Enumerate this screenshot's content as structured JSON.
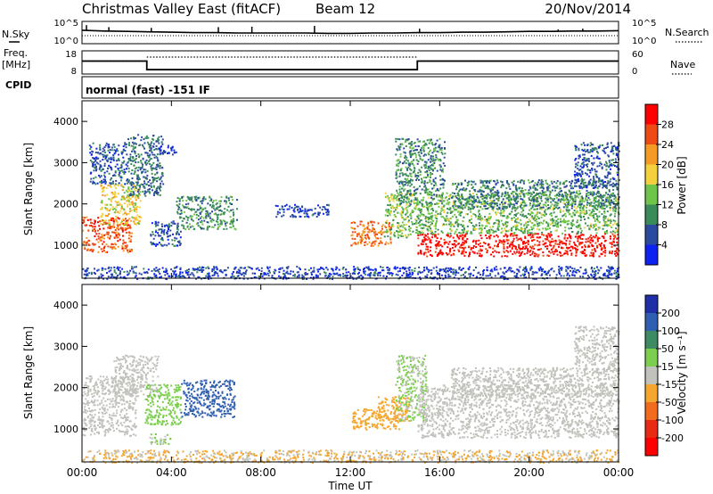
{
  "header": {
    "title": "Christmas Valley East (fitACF)",
    "beam": "Beam 12",
    "date": "20/Nov/2014"
  },
  "chart_data": [
    {
      "type": "line",
      "name": "nsky-nsearch",
      "left_label": "N.Sky",
      "right_label": "N.Search",
      "left_ticks": [
        "10^5",
        "10^0"
      ],
      "right_ticks": [
        "10^5",
        "10^0"
      ],
      "x_hours": [
        0,
        1,
        2,
        3,
        4,
        5,
        6,
        7,
        8,
        9,
        10,
        11,
        12,
        13,
        14,
        15,
        16,
        17,
        18,
        19,
        20,
        21,
        22,
        23,
        24
      ],
      "nsky_log10": [
        3.2,
        3.0,
        2.9,
        2.8,
        2.7,
        2.6,
        2.6,
        2.5,
        2.5,
        2.5,
        2.5,
        2.4,
        2.4,
        2.5,
        2.5,
        2.6,
        2.6,
        2.7,
        2.7,
        2.8,
        2.9,
        2.9,
        3.0,
        3.0,
        3.1
      ],
      "spikes_hours": [
        0.2,
        1.2,
        3.1,
        6.1,
        7.6,
        10.4,
        15.1,
        21.3,
        22.4
      ],
      "spikes_log10": [
        4.5,
        4.0,
        3.8,
        4.0,
        4.1,
        4.3,
        3.6,
        3.4,
        3.6
      ]
    },
    {
      "type": "line",
      "name": "freq-nave",
      "left_label": "Freq.",
      "left_unit": "[MHz]",
      "right_label": "Nave",
      "left_ticks": [
        "18",
        "8"
      ],
      "right_ticks": [
        "60",
        "0"
      ],
      "freq_steps": [
        {
          "from": 0,
          "to": 2.9,
          "mhz": 15.5
        },
        {
          "from": 2.9,
          "to": 15.0,
          "mhz": 10.2
        },
        {
          "from": 15.0,
          "to": 24,
          "mhz": 15.5
        }
      ],
      "nave": [
        {
          "from": 0,
          "to": 2.9,
          "value": 34
        },
        {
          "from": 2.9,
          "to": 15.0,
          "value": 45
        },
        {
          "from": 15.0,
          "to": 24,
          "value": 34
        }
      ]
    },
    {
      "type": "table",
      "name": "cpid",
      "label": "CPID",
      "text": "normal (fast)  -151 IF"
    },
    {
      "type": "heatmap",
      "name": "power",
      "ylabel": "Slant Range [km]",
      "yticks": [
        1000,
        2000,
        3000,
        4000
      ],
      "ylim": [
        200,
        4500
      ],
      "colorbar_label": "Power [dB]",
      "colorbar_ticks": [
        "28",
        "24",
        "20",
        "16",
        "12",
        "8",
        "4"
      ],
      "colors": [
        "#0b22f0",
        "#2a4aa0",
        "#3a8a5a",
        "#6fc44a",
        "#f4d03c",
        "#f59a24",
        "#f04a14",
        "#ff0000"
      ],
      "vmin": 0,
      "vmax": 32,
      "blobs": [
        {
          "t0": 0.0,
          "t1": 2.2,
          "r0": 850,
          "r1": 1700,
          "v": 26
        },
        {
          "t0": 0.8,
          "t1": 2.6,
          "r0": 1500,
          "r1": 2500,
          "v": 18
        },
        {
          "t0": 2.0,
          "t1": 3.6,
          "r0": 2200,
          "r1": 3700,
          "v": 8
        },
        {
          "t0": 0.3,
          "t1": 2.0,
          "r0": 2500,
          "r1": 3500,
          "v": 6
        },
        {
          "t0": 3.4,
          "t1": 4.2,
          "r0": 3200,
          "r1": 3450,
          "v": 4
        },
        {
          "t0": 3.0,
          "t1": 4.4,
          "r0": 1000,
          "r1": 1600,
          "v": 6
        },
        {
          "t0": 4.2,
          "t1": 6.9,
          "r0": 1400,
          "r1": 2200,
          "v": 10
        },
        {
          "t0": 8.6,
          "t1": 11.0,
          "r0": 1700,
          "r1": 2000,
          "v": 5
        },
        {
          "t0": 12.0,
          "t1": 13.8,
          "r0": 1000,
          "r1": 1600,
          "v": 24
        },
        {
          "t0": 13.5,
          "t1": 15.0,
          "r0": 1200,
          "r1": 2300,
          "v": 14
        },
        {
          "t0": 14.0,
          "t1": 16.2,
          "r0": 2000,
          "r1": 3600,
          "v": 10
        },
        {
          "t0": 15.0,
          "t1": 24.0,
          "r0": 750,
          "r1": 1300,
          "v": 30
        },
        {
          "t0": 15.0,
          "t1": 24.0,
          "r0": 1300,
          "r1": 2300,
          "v": 13
        },
        {
          "t0": 16.5,
          "t1": 24.0,
          "r0": 1900,
          "r1": 2600,
          "v": 9
        },
        {
          "t0": 22.0,
          "t1": 24.0,
          "r0": 2400,
          "r1": 3500,
          "v": 6
        },
        {
          "t0": 0.0,
          "t1": 24.0,
          "r0": 200,
          "r1": 500,
          "v": 5
        }
      ]
    },
    {
      "type": "heatmap",
      "name": "velocity",
      "xlabel": "Time UT",
      "ylabel": "Slant Range [km]",
      "xticks": [
        "00:00",
        "04:00",
        "08:00",
        "12:00",
        "16:00",
        "20:00",
        "00:00"
      ],
      "yticks": [
        1000,
        2000,
        3000,
        4000
      ],
      "ylim": [
        200,
        4500
      ],
      "colorbar_label": "Velocity [m s⁻¹]",
      "colorbar_ticks": [
        "200",
        "100",
        "50",
        "15",
        "-15",
        "-50",
        "-100",
        "-200"
      ],
      "colors": [
        "#1f2fa8",
        "#2f5fb0",
        "#3e8a62",
        "#7ccf4e",
        "#c2c2bc",
        "#f4a62e",
        "#f36c1e",
        "#e82a14",
        "#ff0000"
      ],
      "vmin": -250,
      "vmax": 250,
      "blobs": [
        {
          "t0": 0.0,
          "t1": 2.4,
          "r0": 850,
          "r1": 2300,
          "v": 0
        },
        {
          "t0": 1.4,
          "t1": 3.4,
          "r0": 1800,
          "r1": 2800,
          "v": 0
        },
        {
          "t0": 2.8,
          "t1": 4.4,
          "r0": 1100,
          "r1": 2100,
          "v": 60
        },
        {
          "t0": 4.4,
          "t1": 6.8,
          "r0": 1300,
          "r1": 2200,
          "v": 170
        },
        {
          "t0": 3.0,
          "t1": 4.0,
          "r0": 650,
          "r1": 900,
          "v": 30
        },
        {
          "t0": 12.0,
          "t1": 14.2,
          "r0": 1000,
          "r1": 1500,
          "v": -60
        },
        {
          "t0": 13.2,
          "t1": 14.6,
          "r0": 1200,
          "r1": 1800,
          "v": -60
        },
        {
          "t0": 14.0,
          "t1": 15.4,
          "r0": 1200,
          "r1": 2800,
          "v": 30
        },
        {
          "t0": 15.0,
          "t1": 24.0,
          "r0": 800,
          "r1": 2100,
          "v": 0
        },
        {
          "t0": 16.5,
          "t1": 24.0,
          "r0": 1800,
          "r1": 2500,
          "v": 0
        },
        {
          "t0": 22.0,
          "t1": 24.0,
          "r0": 2400,
          "r1": 3500,
          "v": 0
        },
        {
          "t0": 0.0,
          "t1": 24.0,
          "r0": 200,
          "r1": 500,
          "v": -30
        }
      ]
    }
  ]
}
